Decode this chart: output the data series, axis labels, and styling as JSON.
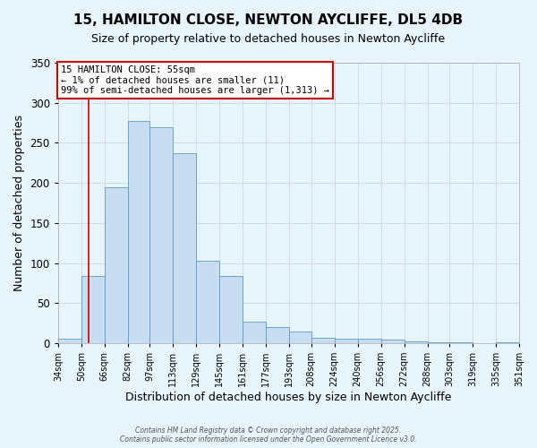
{
  "title": "15, HAMILTON CLOSE, NEWTON AYCLIFFE, DL5 4DB",
  "subtitle": "Size of property relative to detached houses in Newton Aycliffe",
  "xlabel": "Distribution of detached houses by size in Newton Aycliffe",
  "ylabel": "Number of detached properties",
  "bin_labels": [
    "34sqm",
    "50sqm",
    "66sqm",
    "82sqm",
    "97sqm",
    "113sqm",
    "129sqm",
    "145sqm",
    "161sqm",
    "177sqm",
    "193sqm",
    "208sqm",
    "224sqm",
    "240sqm",
    "256sqm",
    "272sqm",
    "288sqm",
    "303sqm",
    "319sqm",
    "335sqm",
    "351sqm"
  ],
  "bin_edges": [
    34,
    50,
    66,
    82,
    97,
    113,
    129,
    145,
    161,
    177,
    193,
    208,
    224,
    240,
    256,
    272,
    288,
    303,
    319,
    335,
    351
  ],
  "bar_heights": [
    5,
    84,
    195,
    277,
    270,
    237,
    103,
    84,
    27,
    20,
    15,
    7,
    5,
    6,
    4,
    2,
    1,
    1,
    0,
    1
  ],
  "bar_color": "#c9ddf0",
  "bar_edge_color": "#5b9bd5",
  "grid_color": "#c8d8e8",
  "bg_color": "#e8f4fb",
  "red_line_x": 55,
  "annotation_text": "15 HAMILTON CLOSE: 55sqm\n← 1% of detached houses are smaller (11)\n99% of semi-detached houses are larger (1,313) →",
  "annotation_box_color": "#ffffff",
  "annotation_box_edge_color": "#cc0000",
  "ylim": [
    0,
    350
  ],
  "footer_line1": "Contains HM Land Registry data © Crown copyright and database right 2025.",
  "footer_line2": "Contains public sector information licensed under the Open Government Licence v3.0."
}
